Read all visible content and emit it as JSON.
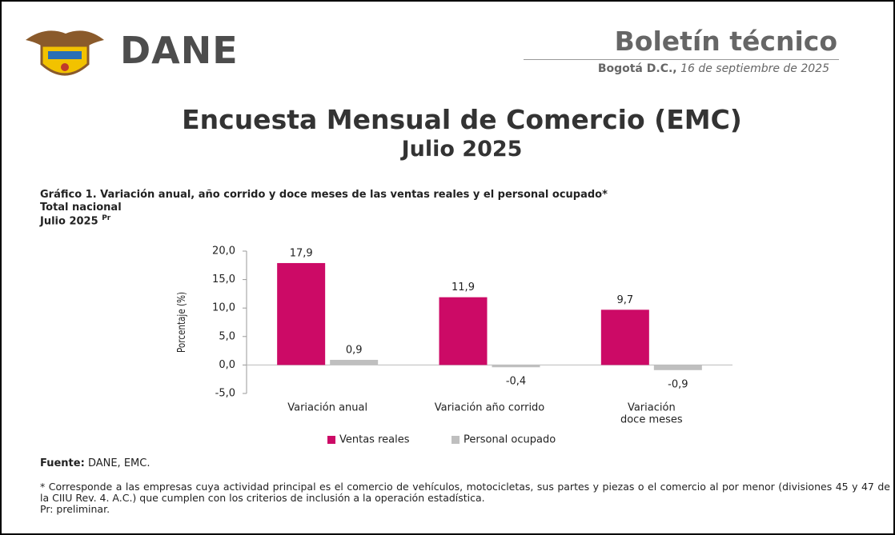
{
  "header": {
    "logo_text": "DANE",
    "title": "Boletín técnico",
    "place": "Bogotá D.C.,",
    "date": "16 de septiembre de 2025"
  },
  "document": {
    "title": "Encuesta Mensual de Comercio (EMC)",
    "subtitle": "Julio 2025"
  },
  "chart_data": {
    "type": "bar",
    "title": "Gráfico 1. Variación anual, año corrido y doce meses de las ventas reales y el personal ocupado*",
    "subtitle": "Total nacional",
    "period": "Julio 2025",
    "period_note": "Pr",
    "ylabel": "Porcentaje (%)",
    "categories": [
      "Variación anual",
      "Variación año corrido",
      [
        "Variación",
        "doce meses"
      ]
    ],
    "series": [
      {
        "name": "Ventas reales",
        "color": "#cc0a66",
        "values": [
          17.9,
          11.9,
          9.7
        ],
        "value_labels": [
          "17,9",
          "11,9",
          "9,7"
        ]
      },
      {
        "name": "Personal ocupado",
        "color": "#bfbfbf",
        "values": [
          0.9,
          -0.4,
          -0.9
        ],
        "value_labels": [
          "0,9",
          "-0,4",
          "-0,9"
        ]
      }
    ],
    "ylim": [
      -5,
      20
    ],
    "yticks": [
      {
        "value": -5,
        "label": "-5,0"
      },
      {
        "value": 0,
        "label": "0,0"
      },
      {
        "value": 5,
        "label": "5,0"
      },
      {
        "value": 10,
        "label": "10,0"
      },
      {
        "value": 15,
        "label": "15,0"
      },
      {
        "value": 20,
        "label": "20,0"
      }
    ],
    "legend": "bottom"
  },
  "notes": {
    "source_label": "Fuente:",
    "source": "DANE, EMC.",
    "footnote": "* Corresponde a las empresas cuya actividad principal es el comercio de vehículos, motocicletas, sus partes y piezas o el comercio al por menor (divisiones 45 y 47 de la CIIU Rev. 4. A.C.) que cumplen con los criterios de inclusión a la operación estadística.",
    "preliminary": "Pr: preliminar."
  }
}
